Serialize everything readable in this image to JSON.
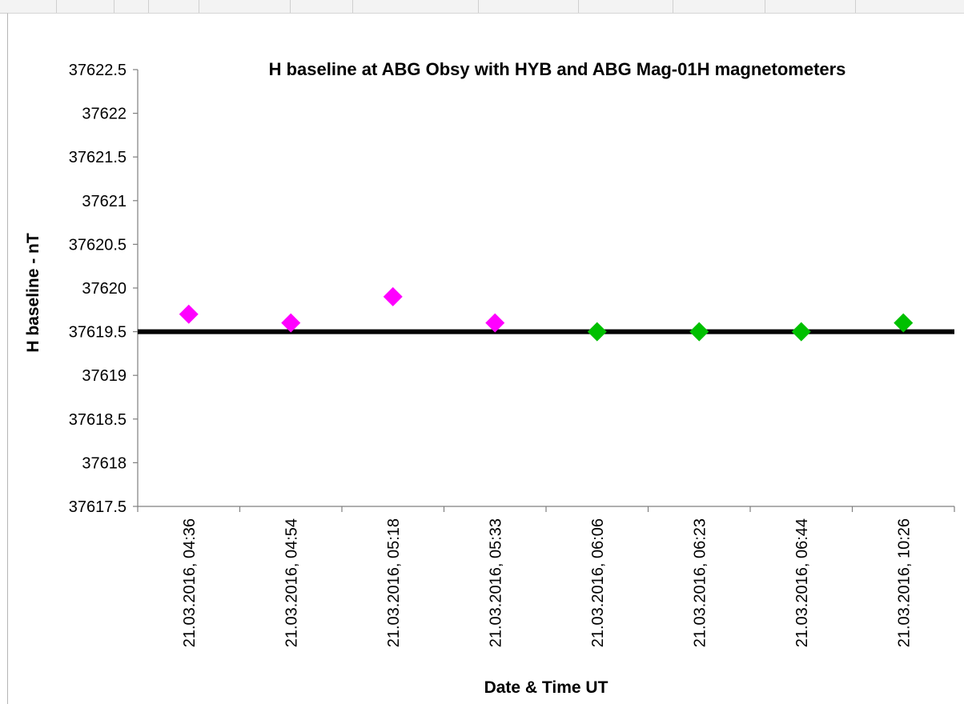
{
  "chart_data": {
    "type": "scatter",
    "title": "H baseline at ABG Obsy with HYB and ABG Mag-01H  magnetometers",
    "xlabel": "Date & Time UT",
    "ylabel": "H baseline - nT",
    "categories": [
      "21.03.2016, 04:36",
      "21.03.2016, 04:54",
      "21.03.2016, 05:18",
      "21.03.2016, 05:33",
      "21.03.2016, 06:06",
      "21.03.2016, 06:23",
      "21.03.2016, 06:44",
      "21.03.2016, 10:26"
    ],
    "series": [
      {
        "values": [
          37619.7,
          37619.6,
          37619.9,
          37619.6,
          null,
          null,
          null,
          null
        ],
        "color": "#ff00ff",
        "marker": "diamond"
      },
      {
        "values": [
          null,
          null,
          null,
          null,
          37619.5,
          37619.5,
          37619.5,
          37619.6
        ],
        "color": "#00c000",
        "marker": "diamond"
      }
    ],
    "reference_line": {
      "value": 37619.5,
      "color": "#000000"
    },
    "ylim": [
      37617.5,
      37622.5
    ],
    "yticks": [
      "37617.5",
      "37618",
      "37618.5",
      "37619",
      "37619.5",
      "37620",
      "37620.5",
      "37621",
      "37621.5",
      "37622",
      "37622.5"
    ],
    "grid": false,
    "legend": "none"
  }
}
